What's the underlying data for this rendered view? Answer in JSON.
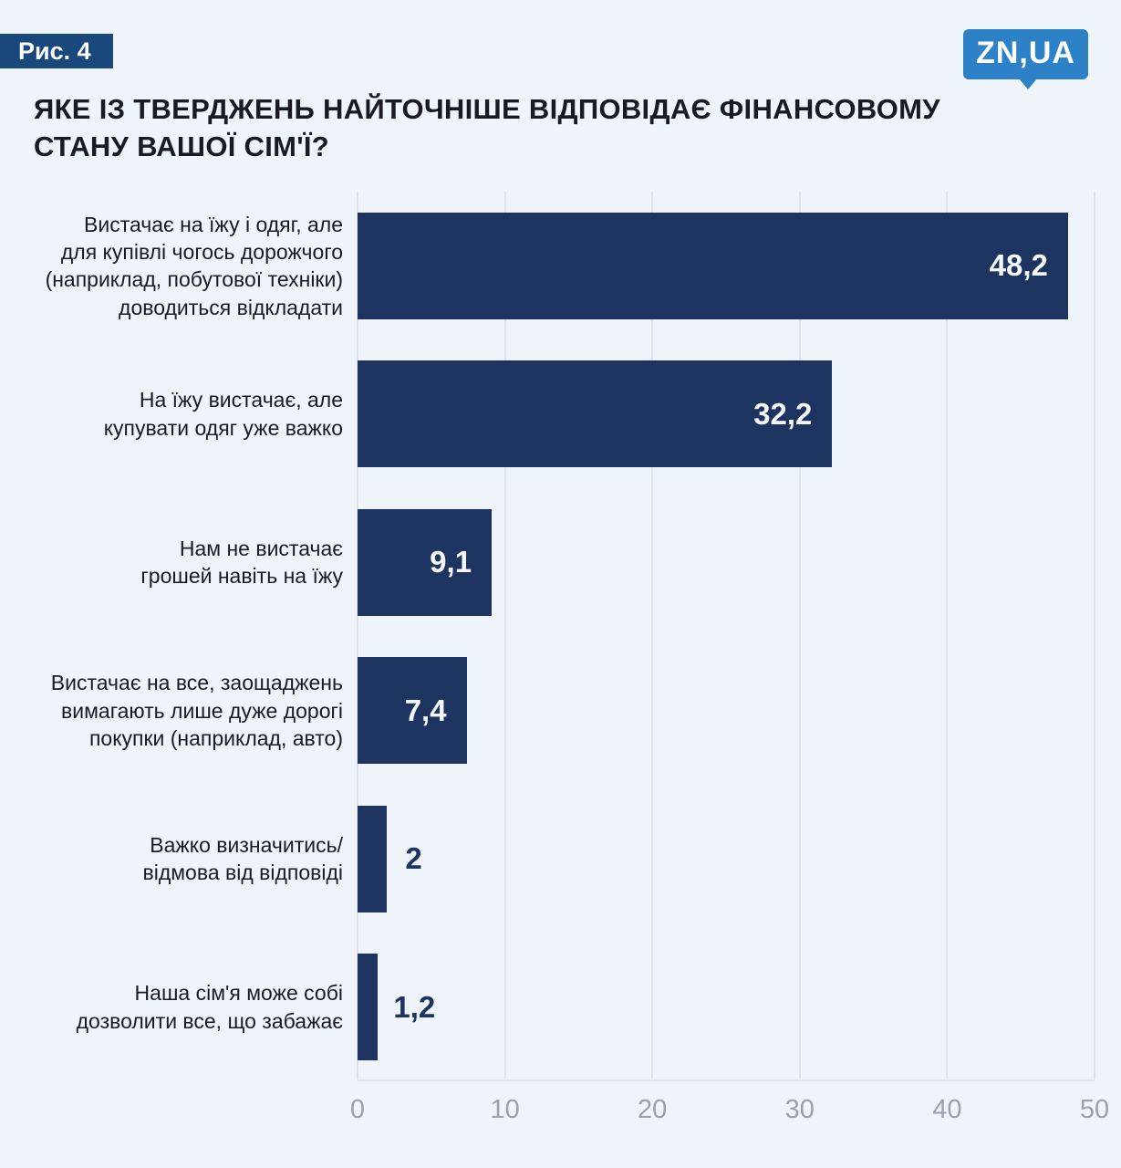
{
  "header": {
    "figure_label": "Рис. 4",
    "logo_text": "ZN,UA"
  },
  "title": "ЯКЕ ІЗ ТВЕРДЖЕНЬ НАЙТОЧНІШЕ ВІДПОВІДАЄ ФІНАНСОВОМУ\nСТАНУ ВАШОЇ СІМ'Ї?",
  "chart_data": {
    "type": "bar",
    "orientation": "horizontal",
    "title": "ЯКЕ ІЗ ТВЕРДЖЕНЬ НАЙТОЧНІШЕ ВІДПОВІДАЄ ФІНАНСОВОМУ СТАНУ ВАШОЇ СІМ'Ї?",
    "categories": [
      "Вистачає на їжу і одяг, але\nдля купівлі чогось дорожчого\n(наприклад, побутової техніки)\nдоводиться відкладати",
      "На їжу вистачає, але\nкупувати одяг уже важко",
      "Нам не вистачає\nгрошей навіть на їжу",
      "Вистачає на все, заощаджень\nвимагають лише дуже дорогі\nпокупки (наприклад, авто)",
      "Важко визначитись/\nвідмова від відповіді",
      "Наша сім'я може собі\nдозволити все, що забажає"
    ],
    "values": [
      48.2,
      32.2,
      9.1,
      7.4,
      2,
      1.2
    ],
    "value_labels": [
      "48,2",
      "32,2",
      "9,1",
      "7,4",
      "2",
      "1,2"
    ],
    "xlim": [
      0,
      50
    ],
    "x_ticks": [
      "0",
      "10",
      "20",
      "30",
      "40",
      "50"
    ],
    "grid": "vertical",
    "legend": "none",
    "xlabel": "",
    "ylabel": ""
  },
  "colors": {
    "background": "#eff3fa",
    "badge_bg": "#19487d",
    "logo_bg": "#2d81c6",
    "title_text": "#191b20",
    "bar": "#1d3460",
    "value_inside": "#f5f8fc",
    "value_outside": "#1d3460",
    "axis_text": "#99a1ac",
    "gridline": "#dfe4ec"
  }
}
